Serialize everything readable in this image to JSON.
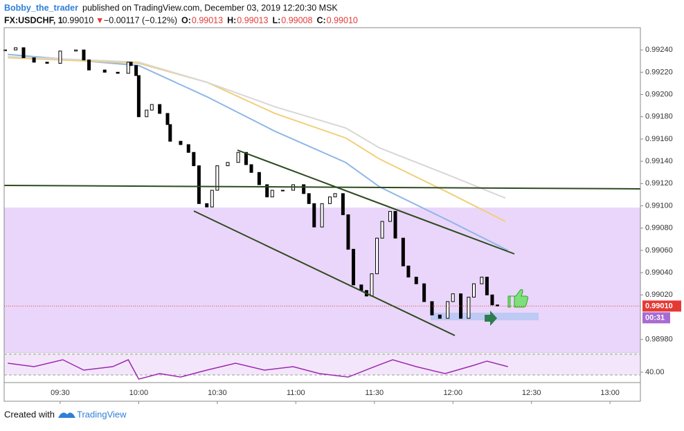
{
  "header": {
    "author": "Bobby_the_trader",
    "published": "published on TradingView.com, December 03, 2019 12:20:30 MSK",
    "symbol": "FX:USDCHF, 1",
    "last": "0.99010",
    "arrow": "▼",
    "change": "−0.00117 (−0.12%)",
    "ohlc": [
      {
        "label": "O:",
        "value": "0.99013"
      },
      {
        "label": "H:",
        "value": "0.99013"
      },
      {
        "label": "L:",
        "value": "0.99008"
      },
      {
        "label": "C:",
        "value": "0.99010"
      }
    ]
  },
  "footer": {
    "text": "Created with",
    "brand": "TradingView"
  },
  "chart_data": {
    "type": "candlestick",
    "x": [
      549,
      553,
      556,
      560,
      565,
      570,
      576,
      579,
      581,
      587,
      592,
      596,
      597,
      599,
      600,
      603,
      605,
      608,
      611,
      612,
      616,
      619,
      621,
      623,
      626,
      628,
      630,
      634,
      638,
      641,
      643,
      646,
      649,
      651,
      655,
      659,
      663,
      665,
      667,
      670,
      673,
      675,
      678,
      680,
      682,
      685,
      687,
      689,
      691,
      693,
      696,
      698,
      701,
      703,
      706,
      709,
      712,
      715,
      718,
      720,
      723,
      726,
      728,
      731,
      733,
      735,
      737
    ],
    "close": [
      0.9924,
      0.99242,
      0.99233,
      0.99229,
      0.99228,
      0.99239,
      0.9924,
      0.99231,
      0.99222,
      0.9922,
      0.99219,
      0.99229,
      0.99226,
      0.99217,
      0.9918,
      0.99186,
      0.99191,
      0.99183,
      0.99173,
      0.99158,
      0.99155,
      0.99148,
      0.99136,
      0.99102,
      0.99099,
      0.99114,
      0.99136,
      0.99139,
      0.99148,
      0.99137,
      0.9913,
      0.99119,
      0.99108,
      0.99114,
      0.99114,
      0.99119,
      0.99111,
      0.99102,
      0.99081,
      0.99102,
      0.99108,
      0.99111,
      0.99092,
      0.99061,
      0.99029,
      0.99024,
      0.99019,
      0.99039,
      0.99071,
      0.99086,
      0.99095,
      0.99071,
      0.99046,
      0.99036,
      0.9903,
      0.99014,
      0.99002,
      0.98999,
      0.99014,
      0.99021,
      0.98999,
      0.99018,
      0.9903,
      0.99036,
      0.9902,
      0.99011,
      0.9901
    ],
    "up_color": "#ffffff",
    "down_color": "#000000",
    "moving_averages": [
      {
        "color": "#8fb6e8",
        "x": [
          550,
          600,
          626,
          652,
          679,
          692,
          719,
          741
        ],
        "values": [
          0.99236,
          0.99226,
          0.99198,
          0.99167,
          0.99139,
          0.99117,
          0.99086,
          0.9906
        ]
      },
      {
        "color": "#f0cf7a",
        "x": [
          550,
          600,
          626,
          652,
          679,
          692,
          719,
          740
        ],
        "values": [
          0.99233,
          0.99228,
          0.99211,
          0.99183,
          0.99161,
          0.99142,
          0.99111,
          0.99086
        ]
      },
      {
        "color": "#d9d6d6",
        "x": [
          550,
          600,
          626,
          652,
          679,
          692,
          719,
          740
        ],
        "values": [
          0.99234,
          0.99229,
          0.99211,
          0.99189,
          0.9917,
          0.99152,
          0.99127,
          0.99107
        ]
      }
    ],
    "price_label": "0.99010",
    "price_color": "#e53935",
    "countdown": "00:31",
    "xlim": [
      548.6,
      791.6
    ],
    "ylim": [
      0.98968,
      0.9926
    ],
    "xticks": [
      {
        "value": 570,
        "label": "09:30"
      },
      {
        "value": 600,
        "label": "10:00"
      },
      {
        "value": 630,
        "label": "10:30"
      },
      {
        "value": 660,
        "label": "11:00"
      },
      {
        "value": 690,
        "label": "11:30"
      },
      {
        "value": 720,
        "label": "12:00"
      },
      {
        "value": 750,
        "label": "12:30"
      },
      {
        "value": 780,
        "label": "13:00"
      }
    ],
    "yticks": [
      {
        "value": 0.9898,
        "label": "0.98980"
      },
      {
        "value": 0.9902,
        "label": "0.99020"
      },
      {
        "value": 0.9904,
        "label": "0.99040"
      },
      {
        "value": 0.9906,
        "label": "0.99060"
      },
      {
        "value": 0.9908,
        "label": "0.99080"
      },
      {
        "value": 0.991,
        "label": "0.99100"
      },
      {
        "value": 0.9912,
        "label": "0.99120"
      },
      {
        "value": 0.9914,
        "label": "0.99140"
      },
      {
        "value": 0.9916,
        "label": "0.99160"
      },
      {
        "value": 0.9918,
        "label": "0.99180"
      },
      {
        "value": 0.992,
        "label": "0.99200"
      },
      {
        "value": 0.9922,
        "label": "0.99220"
      },
      {
        "value": 0.9924,
        "label": "0.99240"
      }
    ],
    "rsi": {
      "color": "#9c27b0",
      "x": [
        550,
        560,
        571,
        579,
        590,
        596,
        600,
        608,
        616,
        626,
        637,
        648,
        659,
        669,
        680,
        690,
        697,
        706,
        717,
        728,
        733,
        741
      ],
      "values": [
        58.6,
        51.4,
        65.7,
        44.3,
        51.4,
        65.7,
        25.7,
        37.1,
        30,
        44.3,
        58.6,
        44.3,
        51.4,
        37.1,
        30,
        51.4,
        65.7,
        51.4,
        37.1,
        54.3,
        62.9,
        51.4
      ],
      "ylim": [
        20,
        80
      ],
      "yticks": [
        {
          "value": 40,
          "label": "40.00"
        }
      ]
    }
  }
}
